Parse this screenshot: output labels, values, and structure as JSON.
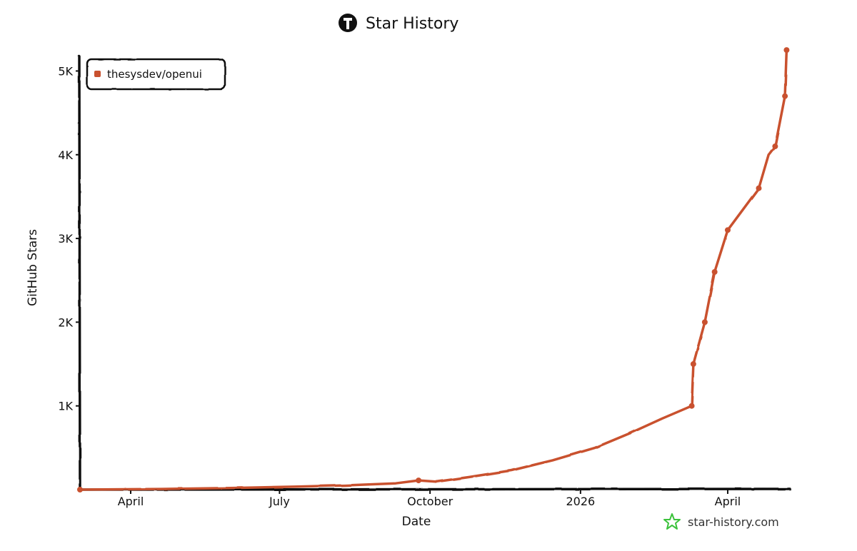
{
  "chart_data": {
    "type": "line",
    "title": "Star History",
    "xlabel": "Date",
    "ylabel": "GitHub Stars",
    "x_tick_labels": [
      {
        "date": "2025-04-01",
        "label": "April"
      },
      {
        "date": "2025-07-01",
        "label": "July"
      },
      {
        "date": "2025-10-01",
        "label": "October"
      },
      {
        "date": "2026-01-01",
        "label": "2026"
      },
      {
        "date": "2026-04-01",
        "label": "April"
      }
    ],
    "y_ticks": [
      {
        "value": 1000,
        "label": "1K"
      },
      {
        "value": 2000,
        "label": "2K"
      },
      {
        "value": 3000,
        "label": "3K"
      },
      {
        "value": 4000,
        "label": "4K"
      },
      {
        "value": 5000,
        "label": "5K"
      }
    ],
    "xlim": [
      "2025-03-01",
      "2026-05-09"
    ],
    "ylim": [
      0,
      5200
    ],
    "grid": false,
    "legend_position": "top-left",
    "series": [
      {
        "name": "thesysdev/openui",
        "color": "#c9512f",
        "points": [
          {
            "x": "2025-03-01",
            "y": 0
          },
          {
            "x": "2025-04-20",
            "y": 8
          },
          {
            "x": "2025-06-01",
            "y": 20
          },
          {
            "x": "2025-07-10",
            "y": 35
          },
          {
            "x": "2025-08-10",
            "y": 50
          },
          {
            "x": "2025-09-10",
            "y": 75
          },
          {
            "x": "2025-09-24",
            "y": 110
          },
          {
            "x": "2025-10-05",
            "y": 95
          },
          {
            "x": "2025-10-25",
            "y": 150
          },
          {
            "x": "2025-11-20",
            "y": 230
          },
          {
            "x": "2025-12-15",
            "y": 350
          },
          {
            "x": "2026-01-10",
            "y": 500
          },
          {
            "x": "2026-02-01",
            "y": 680
          },
          {
            "x": "2026-02-20",
            "y": 850
          },
          {
            "x": "2026-03-10",
            "y": 1000
          },
          {
            "x": "2026-03-11",
            "y": 1500
          },
          {
            "x": "2026-03-18",
            "y": 2000
          },
          {
            "x": "2026-03-24",
            "y": 2600
          },
          {
            "x": "2026-04-01",
            "y": 3100
          },
          {
            "x": "2026-04-20",
            "y": 3600
          },
          {
            "x": "2026-04-26",
            "y": 4000
          },
          {
            "x": "2026-04-30",
            "y": 4100
          },
          {
            "x": "2026-05-06",
            "y": 4700
          },
          {
            "x": "2026-05-07",
            "y": 5250
          }
        ],
        "markers": [
          {
            "x": "2025-03-01",
            "y": 0
          },
          {
            "x": "2025-09-24",
            "y": 110
          },
          {
            "x": "2026-03-10",
            "y": 1000
          },
          {
            "x": "2026-03-11",
            "y": 1500
          },
          {
            "x": "2026-03-18",
            "y": 2000
          },
          {
            "x": "2026-03-24",
            "y": 2600
          },
          {
            "x": "2026-04-01",
            "y": 3100
          },
          {
            "x": "2026-04-20",
            "y": 3600
          },
          {
            "x": "2026-04-30",
            "y": 4100
          },
          {
            "x": "2026-05-06",
            "y": 4700
          },
          {
            "x": "2026-05-07",
            "y": 5250
          }
        ]
      }
    ]
  },
  "branding": {
    "logo_icon": "github-icon",
    "watermark_icon": "star-icon",
    "watermark_text": "star-history.com",
    "watermark_color": "#3cc23c"
  }
}
